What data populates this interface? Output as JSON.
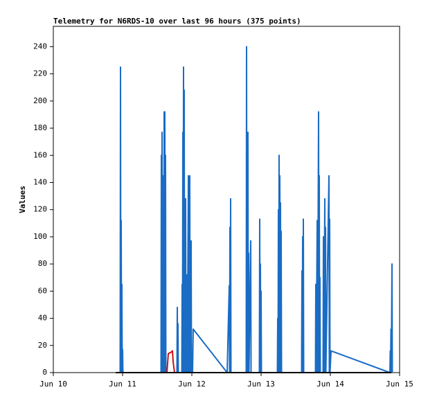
{
  "chart_data": {
    "type": "line",
    "title": "Telemetry for N6RDS-10 over last 96 hours (375 points)",
    "y_label": "Values",
    "xlim": [
      10,
      15
    ],
    "xticks": [
      {
        "value": 10,
        "label": "Jun 10"
      },
      {
        "value": 11,
        "label": "Jun 11"
      },
      {
        "value": 12,
        "label": "Jun 12"
      },
      {
        "value": 13,
        "label": "Jun 13"
      },
      {
        "value": 14,
        "label": "Jun 14"
      },
      {
        "value": 15,
        "label": "Jun 15"
      }
    ],
    "ylim": [
      0,
      255
    ],
    "yticks": [
      0,
      20,
      40,
      60,
      80,
      100,
      120,
      140,
      160,
      180,
      200,
      220,
      240
    ],
    "series": [
      {
        "color": "#1a6cc4",
        "x": [
          10.965,
          10.97,
          10.975,
          10.98,
          10.985,
          10.99,
          10.995,
          11.0,
          11.005,
          11.555,
          11.56,
          11.565,
          11.57,
          11.575,
          11.59,
          11.595,
          11.6,
          11.605,
          11.61,
          11.615,
          11.62,
          11.625,
          11.785,
          11.79,
          11.795,
          11.8,
          11.805,
          11.855,
          11.86,
          11.865,
          11.87,
          11.875,
          11.88,
          11.885,
          11.89,
          11.895,
          11.91,
          11.915,
          11.93,
          11.935,
          11.95,
          11.955,
          11.97,
          11.975,
          11.99,
          11.995,
          12.01,
          12.02,
          12.51,
          12.54,
          12.545,
          12.55,
          12.555,
          12.56,
          12.565,
          12.785,
          12.79,
          12.795,
          12.81,
          12.815,
          12.82,
          12.825,
          12.85,
          12.855,
          12.975,
          12.98,
          12.985,
          12.99,
          12.995,
          13.0,
          13.005,
          13.235,
          13.24,
          13.245,
          13.25,
          13.255,
          13.26,
          13.265,
          13.27,
          13.275,
          13.28,
          13.285,
          13.29,
          13.295,
          13.585,
          13.59,
          13.595,
          13.6,
          13.605,
          13.61,
          13.615,
          13.785,
          13.79,
          13.795,
          13.81,
          13.815,
          13.83,
          13.835,
          13.84,
          13.845,
          13.85,
          13.855,
          13.895,
          13.9,
          13.905,
          13.92,
          13.925,
          13.93,
          13.935,
          13.98,
          13.985,
          13.99,
          13.995,
          14.01,
          14.86,
          14.865,
          14.87,
          14.875,
          14.88,
          14.89,
          14.895
        ],
        "values": [
          0,
          225,
          0,
          112,
          0,
          65,
          0,
          17,
          0,
          0,
          160,
          0,
          177,
          0,
          145,
          0,
          192,
          0,
          192,
          0,
          160,
          0,
          0,
          48,
          0,
          36,
          0,
          0,
          65,
          0,
          177,
          0,
          225,
          0,
          208,
          0,
          128,
          0,
          72,
          0,
          145,
          0,
          145,
          0,
          97,
          0,
          0,
          32,
          0,
          64,
          0,
          107,
          0,
          128,
          0,
          0,
          240,
          0,
          177,
          0,
          88,
          0,
          97,
          0,
          0,
          113,
          0,
          80,
          0,
          60,
          0,
          0,
          40,
          0,
          120,
          0,
          160,
          0,
          145,
          0,
          125,
          0,
          104,
          0,
          0,
          75,
          0,
          100,
          0,
          113,
          0,
          0,
          65,
          0,
          112,
          0,
          192,
          0,
          145,
          0,
          70,
          0,
          0,
          100,
          0,
          128,
          0,
          107,
          0,
          145,
          0,
          113,
          0,
          16,
          0,
          16,
          0,
          32,
          0,
          80,
          0
        ]
      },
      {
        "color": "#cc1111",
        "x": [
          11.64,
          11.66,
          11.7,
          11.72,
          11.73,
          11.75
        ],
        "values": [
          0,
          14,
          15,
          16,
          8,
          0
        ]
      },
      {
        "color": "#000000",
        "x": [
          10.9,
          14.88
        ],
        "values": [
          0,
          0
        ]
      }
    ]
  }
}
